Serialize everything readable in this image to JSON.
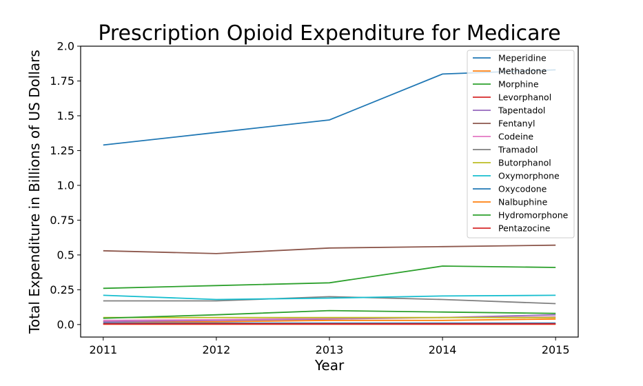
{
  "chart_data": {
    "type": "line",
    "title": "Prescription Opioid Expenditure for Medicare",
    "xlabel": "Year",
    "ylabel": "Total Expenditure in Billions of US Dollars",
    "x": [
      2011,
      2012,
      2013,
      2014,
      2015
    ],
    "x_tick_labels": [
      "2011",
      "2012",
      "2013",
      "2014",
      "2015"
    ],
    "ylim": [
      -0.09,
      2.0
    ],
    "y_ticks": [
      0.0,
      0.25,
      0.5,
      0.75,
      1.0,
      1.25,
      1.5,
      1.75,
      2.0
    ],
    "y_tick_labels": [
      "0.0",
      "0.25",
      "0.5",
      "0.75",
      "1.0",
      "1.25",
      "1.5",
      "1.75",
      "2.0"
    ],
    "grid": false,
    "legend_position": "top-right",
    "series": [
      {
        "name": "Meperidine",
        "color": "#1f77b4",
        "values": [
          0.01,
          0.01,
          0.01,
          0.01,
          0.01
        ]
      },
      {
        "name": "Methadone",
        "color": "#ff7f0e",
        "values": [
          0.02,
          0.02,
          0.03,
          0.03,
          0.04
        ]
      },
      {
        "name": "Morphine",
        "color": "#2ca02c",
        "values": [
          0.26,
          0.28,
          0.3,
          0.42,
          0.41
        ]
      },
      {
        "name": "Levorphanol",
        "color": "#d62728",
        "values": [
          0.005,
          0.005,
          0.005,
          0.005,
          0.005
        ]
      },
      {
        "name": "Tapentadol",
        "color": "#9467bd",
        "values": [
          0.02,
          0.03,
          0.04,
          0.05,
          0.07
        ]
      },
      {
        "name": "Fentanyl",
        "color": "#8c564b",
        "values": [
          0.53,
          0.51,
          0.55,
          0.56,
          0.57
        ]
      },
      {
        "name": "Codeine",
        "color": "#e377c2",
        "values": [
          0.03,
          0.035,
          0.045,
          0.05,
          0.055
        ]
      },
      {
        "name": "Tramadol",
        "color": "#7f7f7f",
        "values": [
          0.17,
          0.17,
          0.2,
          0.18,
          0.15
        ]
      },
      {
        "name": "Butorphanol",
        "color": "#bcbd22",
        "values": [
          0.05,
          0.05,
          0.05,
          0.05,
          0.05
        ]
      },
      {
        "name": "Oxymorphone",
        "color": "#17becf",
        "values": [
          0.21,
          0.18,
          0.19,
          0.205,
          0.21
        ]
      },
      {
        "name": "Oxycodone",
        "color": "#1f77b4",
        "values": [
          1.29,
          1.38,
          1.47,
          1.8,
          1.83
        ]
      },
      {
        "name": "Nalbuphine",
        "color": "#ff7f0e",
        "values": [
          0.002,
          0.002,
          0.002,
          0.002,
          0.002
        ]
      },
      {
        "name": "Hydromorphone",
        "color": "#2ca02c",
        "values": [
          0.045,
          0.07,
          0.1,
          0.09,
          0.08
        ]
      },
      {
        "name": "Pentazocine",
        "color": "#d62728",
        "values": [
          0.003,
          0.003,
          0.003,
          0.003,
          0.003
        ]
      }
    ]
  }
}
